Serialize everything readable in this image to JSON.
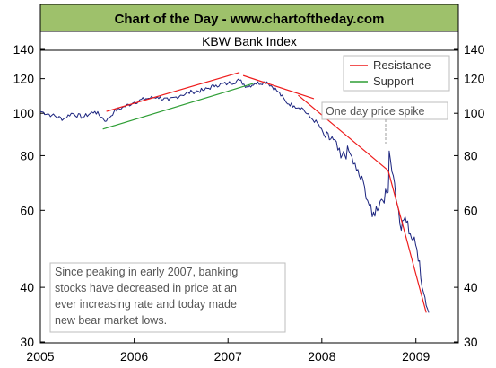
{
  "banner": {
    "title": "Chart of the Day - www.chartoftheday.com",
    "bg_color": "#9ec16b"
  },
  "chart_data": {
    "type": "line",
    "title": "KBW Bank Index",
    "xlabel": "",
    "ylabel": "",
    "y_scale": "log",
    "ylim": [
      30,
      140
    ],
    "xlim": [
      "2005-01-01",
      "2009-06-15"
    ],
    "x_ticks": [
      "2005",
      "2006",
      "2007",
      "2008",
      "2009"
    ],
    "y_ticks": [
      30,
      40,
      60,
      80,
      100,
      120,
      140
    ],
    "y_tick_labels": [
      "30",
      "40",
      "60",
      "80",
      "100",
      "120",
      "140"
    ],
    "grid": false,
    "legend_position": "top-right",
    "series": [
      {
        "name": "",
        "color": "#1a237e",
        "x": [
          "2005-01-01",
          "2005-02-15",
          "2005-04-01",
          "2005-05-01",
          "2005-06-15",
          "2005-08-01",
          "2005-09-15",
          "2005-10-15",
          "2005-11-15",
          "2006-01-01",
          "2006-02-15",
          "2006-04-01",
          "2006-05-15",
          "2006-07-01",
          "2006-08-15",
          "2006-10-01",
          "2006-11-15",
          "2007-01-01",
          "2007-02-15",
          "2007-03-15",
          "2007-04-15",
          "2007-06-01",
          "2007-07-15",
          "2007-08-15",
          "2007-09-15",
          "2007-10-15",
          "2007-11-15",
          "2007-12-15",
          "2008-01-15",
          "2008-02-15",
          "2008-03-15",
          "2008-04-15",
          "2008-05-15",
          "2008-06-15",
          "2008-07-15",
          "2008-08-15",
          "2008-09-15",
          "2008-09-19",
          "2008-10-05",
          "2008-10-20",
          "2008-11-05",
          "2008-11-20",
          "2008-12-10",
          "2008-12-31",
          "2009-01-15",
          "2009-01-25",
          "2009-02-05",
          "2009-02-20"
        ],
        "values": [
          101,
          99,
          97,
          100,
          98,
          101,
          96,
          101,
          103,
          106,
          108,
          109,
          107,
          110,
          112,
          113,
          116,
          117,
          119,
          115,
          117,
          118,
          112,
          106,
          104,
          103,
          98,
          95,
          88,
          87,
          79,
          82,
          74,
          68,
          58,
          63,
          66,
          82,
          72,
          62,
          54,
          58,
          53,
          50,
          46,
          40,
          38,
          35
        ]
      },
      {
        "name": "Resistance",
        "color": "#ee1c1c",
        "x": [
          "2005-09-15",
          "2007-02-15"
        ],
        "values": [
          101,
          124
        ]
      },
      {
        "name": "Resistance",
        "color": "#ee1c1c",
        "x": [
          "2007-03-01",
          "2007-12-01"
        ],
        "values": [
          122,
          108
        ]
      },
      {
        "name": "Resistance",
        "color": "#ee1c1c",
        "x": [
          "2007-10-01",
          "2008-09-15"
        ],
        "values": [
          110,
          74
        ]
      },
      {
        "name": "Resistance",
        "color": "#ee1c1c",
        "x": [
          "2008-09-15",
          "2009-02-10"
        ],
        "values": [
          74,
          35
        ]
      },
      {
        "name": "Support",
        "color": "#2e9e35",
        "x": [
          "2005-09-01",
          "2007-04-10"
        ],
        "values": [
          92,
          117
        ]
      }
    ],
    "legend": [
      {
        "label": "Resistance",
        "color": "#ee1c1c"
      },
      {
        "label": "Support",
        "color": "#2e9e35"
      }
    ],
    "annotations": {
      "spike_label": "One day price spike",
      "note_lines": [
        "Since peaking in early 2007, banking",
        "stocks have decreased in price at an",
        "ever increasing rate and today made",
        "new bear market lows."
      ]
    }
  }
}
